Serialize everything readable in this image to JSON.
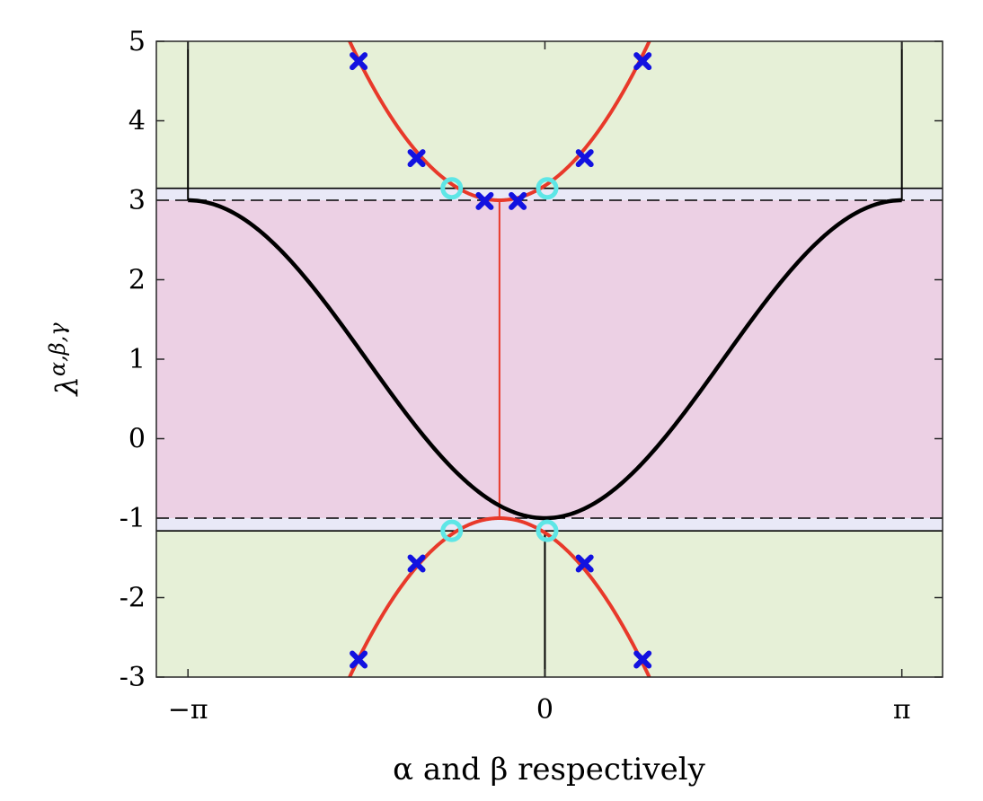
{
  "chart_data": {
    "type": "line",
    "xlabel": "α and β respectively",
    "ylabel_main": "λ",
    "ylabel_sup": "α,β,γ",
    "xlim": [
      -3.42,
      3.5
    ],
    "ylim": [
      -3,
      5
    ],
    "x_ticks": [
      {
        "value": -3.14159,
        "label": "−π"
      },
      {
        "value": 0,
        "label": "0"
      },
      {
        "value": 3.14159,
        "label": "π"
      }
    ],
    "y_ticks": [
      {
        "value": 5,
        "label": "5"
      },
      {
        "value": 4,
        "label": "4"
      },
      {
        "value": 3,
        "label": "3"
      },
      {
        "value": 2,
        "label": "2"
      },
      {
        "value": 1,
        "label": "1"
      },
      {
        "value": 0,
        "label": "0"
      },
      {
        "value": -1,
        "label": "-1"
      },
      {
        "value": -2,
        "label": "-2"
      },
      {
        "value": -3,
        "label": "-3"
      }
    ],
    "bands": [
      {
        "y_from": 3.15,
        "y_to": 5,
        "color": "#e6f0d7"
      },
      {
        "y_from": 3,
        "y_to": 3.15,
        "color": "#e9e9f7"
      },
      {
        "y_from": -1,
        "y_to": 3,
        "color": "#ecd0e4"
      },
      {
        "y_from": -1.16,
        "y_to": -1,
        "color": "#e9e9f7"
      },
      {
        "y_from": -3,
        "y_to": -1.16,
        "color": "#e6f0d7"
      }
    ],
    "hlines": [
      {
        "y": 3.15,
        "style": "solid",
        "color": "#000000"
      },
      {
        "y": 3,
        "style": "dashed",
        "color": "#000000"
      },
      {
        "y": -1,
        "style": "dashed",
        "color": "#000000"
      },
      {
        "y": -1.16,
        "style": "solid",
        "color": "#000000"
      }
    ],
    "vlines": [
      {
        "x": -3.14159,
        "y_from": 3,
        "y_to": 5,
        "color": "#000000"
      },
      {
        "x": 3.14159,
        "y_from": 3,
        "y_to": 5,
        "color": "#000000"
      },
      {
        "x": 0,
        "y_from": -3,
        "y_to": -1.16,
        "color": "#000000"
      },
      {
        "x": -0.4,
        "y_from": -1,
        "y_to": 3,
        "color": "#e8392a"
      }
    ],
    "colors": {
      "black_curve": "#000000",
      "red_curve": "#e8392a",
      "cross_marker": "#1212e0",
      "circle_marker": "#5ee6e6"
    },
    "series": [
      {
        "kind": "black_cosine",
        "x_range": [
          -3.14159,
          3.14159
        ],
        "y_min": -1,
        "y_max": 3,
        "x_center": 0
      },
      {
        "kind": "red_upper_parabola",
        "x_vertex": -0.4,
        "y_vertex": 3,
        "a": 1.15,
        "y_top": 5
      },
      {
        "kind": "red_lower_parabola",
        "x_vertex": -0.4,
        "y_vertex": -1,
        "a": -1.15,
        "y_bottom": -3
      }
    ],
    "cross_markers": [
      {
        "x": -1.64,
        "y": 4.75
      },
      {
        "x": 0.86,
        "y": 4.75
      },
      {
        "x": -1.13,
        "y": 3.53
      },
      {
        "x": 0.35,
        "y": 3.53
      },
      {
        "x": -0.53,
        "y": 2.99
      },
      {
        "x": -0.24,
        "y": 2.99
      },
      {
        "x": -1.64,
        "y": -2.78
      },
      {
        "x": 0.86,
        "y": -2.78
      },
      {
        "x": -1.13,
        "y": -1.57
      },
      {
        "x": 0.35,
        "y": -1.57
      }
    ],
    "circle_markers": [
      {
        "x": -0.82,
        "y": 3.15
      },
      {
        "x": 0.02,
        "y": 3.15
      },
      {
        "x": -0.82,
        "y": -1.16
      },
      {
        "x": 0.02,
        "y": -1.16
      }
    ]
  }
}
